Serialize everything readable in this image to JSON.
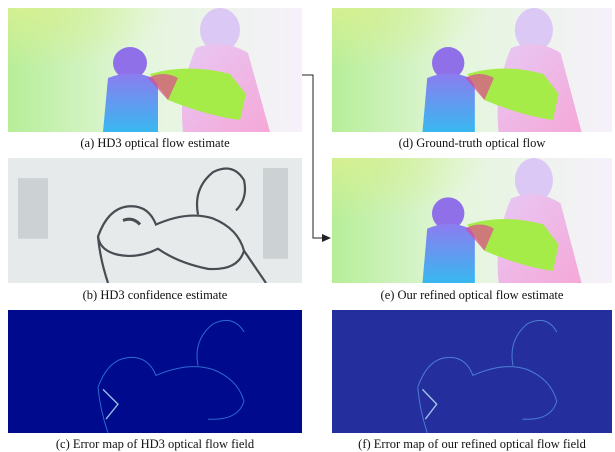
{
  "panels": [
    {
      "caption": "(a) HD3 optical flow estimate"
    },
    {
      "caption": "(b) HD3 confidence estimate"
    },
    {
      "caption": "(c) Error map of HD3 optical flow field"
    },
    {
      "caption": "(d) Ground-truth optical flow"
    },
    {
      "caption": "(e) Our refined optical flow estimate"
    },
    {
      "caption": "(f) Error map of our refined optical flow field"
    }
  ]
}
